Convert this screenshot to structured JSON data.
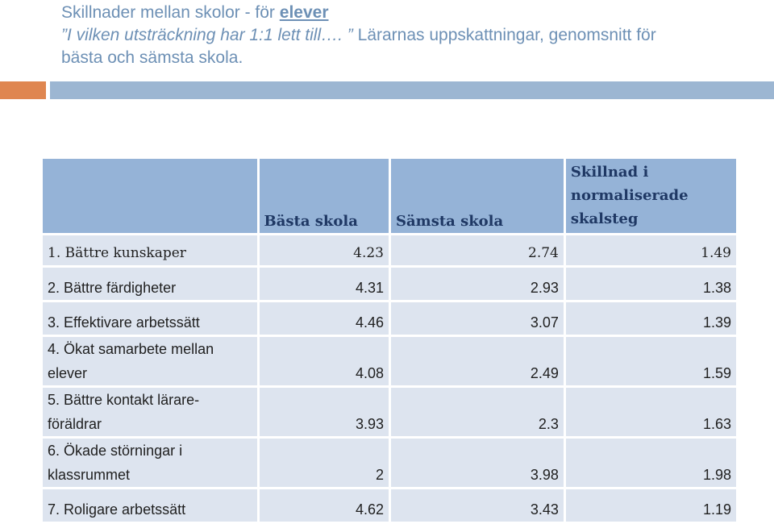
{
  "title": {
    "line1_prefix": "Skillnader mellan skolor - för ",
    "line1_highlight": "elever",
    "line2_quote": "”I vilken utsträckning har 1:1 lett till…. ”",
    "line2_rest": " Lärarnas uppskattningar, genomsnitt för",
    "line3": "bästa och sämsta skola."
  },
  "colors": {
    "title": "#6d90b5",
    "accent_orange": "#df8650",
    "accent_blue": "#9cb6d2",
    "header_bg": "#95b3d7",
    "row_bg": "#dde4ef"
  },
  "table": {
    "headers": [
      "",
      "Bästa skola",
      "Sämsta skola",
      "Skillnad i normaliserade skalsteg"
    ],
    "rows": [
      {
        "label": "1. Bättre kunskaper",
        "best": "4.23",
        "worst": "2.74",
        "diff": "1.49"
      },
      {
        "label": "2. Bättre färdigheter",
        "best": "4.31",
        "worst": "2.93",
        "diff": "1.38"
      },
      {
        "label": "3. Effektivare arbetssätt",
        "best": "4.46",
        "worst": "3.07",
        "diff": "1.39"
      },
      {
        "label": "4. Ökat samarbete mellan elever",
        "best": "4.08",
        "worst": "2.49",
        "diff": "1.59"
      },
      {
        "label": "5. Bättre kontakt lärare-föräldrar",
        "best": "3.93",
        "worst": "2.3",
        "diff": "1.63"
      },
      {
        "label": "6. Ökade störningar i klassrummet",
        "best": "2",
        "worst": "3.98",
        "diff": "1.98"
      },
      {
        "label": "7. Roligare arbetssätt",
        "best": "4.62",
        "worst": "3.43",
        "diff": "1.19"
      }
    ]
  }
}
